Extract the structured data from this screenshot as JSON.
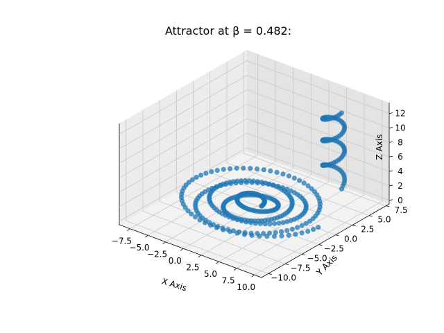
{
  "chart_data": {
    "type": "scatter",
    "title": "Attractor at β = 0.482:",
    "xlabel": "X Axis",
    "ylabel": "Y Axis",
    "zlabel": "Z Axis",
    "xlim": [
      -9,
      11
    ],
    "ylim": [
      -11,
      8
    ],
    "zlim": [
      -0.5,
      13.5
    ],
    "x_ticks": [
      "−7.5",
      "−5.0",
      "−2.5",
      "0.0",
      "2.5",
      "5.0",
      "7.5",
      "10.0"
    ],
    "y_ticks": [
      "−10.0",
      "−7.5",
      "−5.0",
      "−2.5",
      "0.0",
      "2.5",
      "5.0",
      "7.5"
    ],
    "z_ticks": [
      "0",
      "2",
      "4",
      "6",
      "8",
      "10",
      "12"
    ],
    "x_tick_values": [
      -7.5,
      -5.0,
      -2.5,
      0.0,
      2.5,
      5.0,
      7.5,
      10.0
    ],
    "y_tick_values": [
      -10.0,
      -7.5,
      -5.0,
      -2.5,
      0.0,
      2.5,
      5.0,
      7.5
    ],
    "z_tick_values": [
      0,
      2,
      4,
      6,
      8,
      10,
      12
    ],
    "grid": true,
    "marker_color": "#1f77b4",
    "series": [
      {
        "spiral": {
          "turns": 5,
          "radius_start": 1.0,
          "radius_end": 9.0,
          "center_x": 1.0,
          "center_y": -1.5,
          "z_base": 1.0,
          "point_count": 320
        },
        "plume": {
          "x_range": [
            5.0,
            7.5
          ],
          "y_range": [
            3.5,
            6.0
          ],
          "z_range": [
            2.0,
            12.5
          ],
          "point_count": 90
        }
      }
    ]
  }
}
